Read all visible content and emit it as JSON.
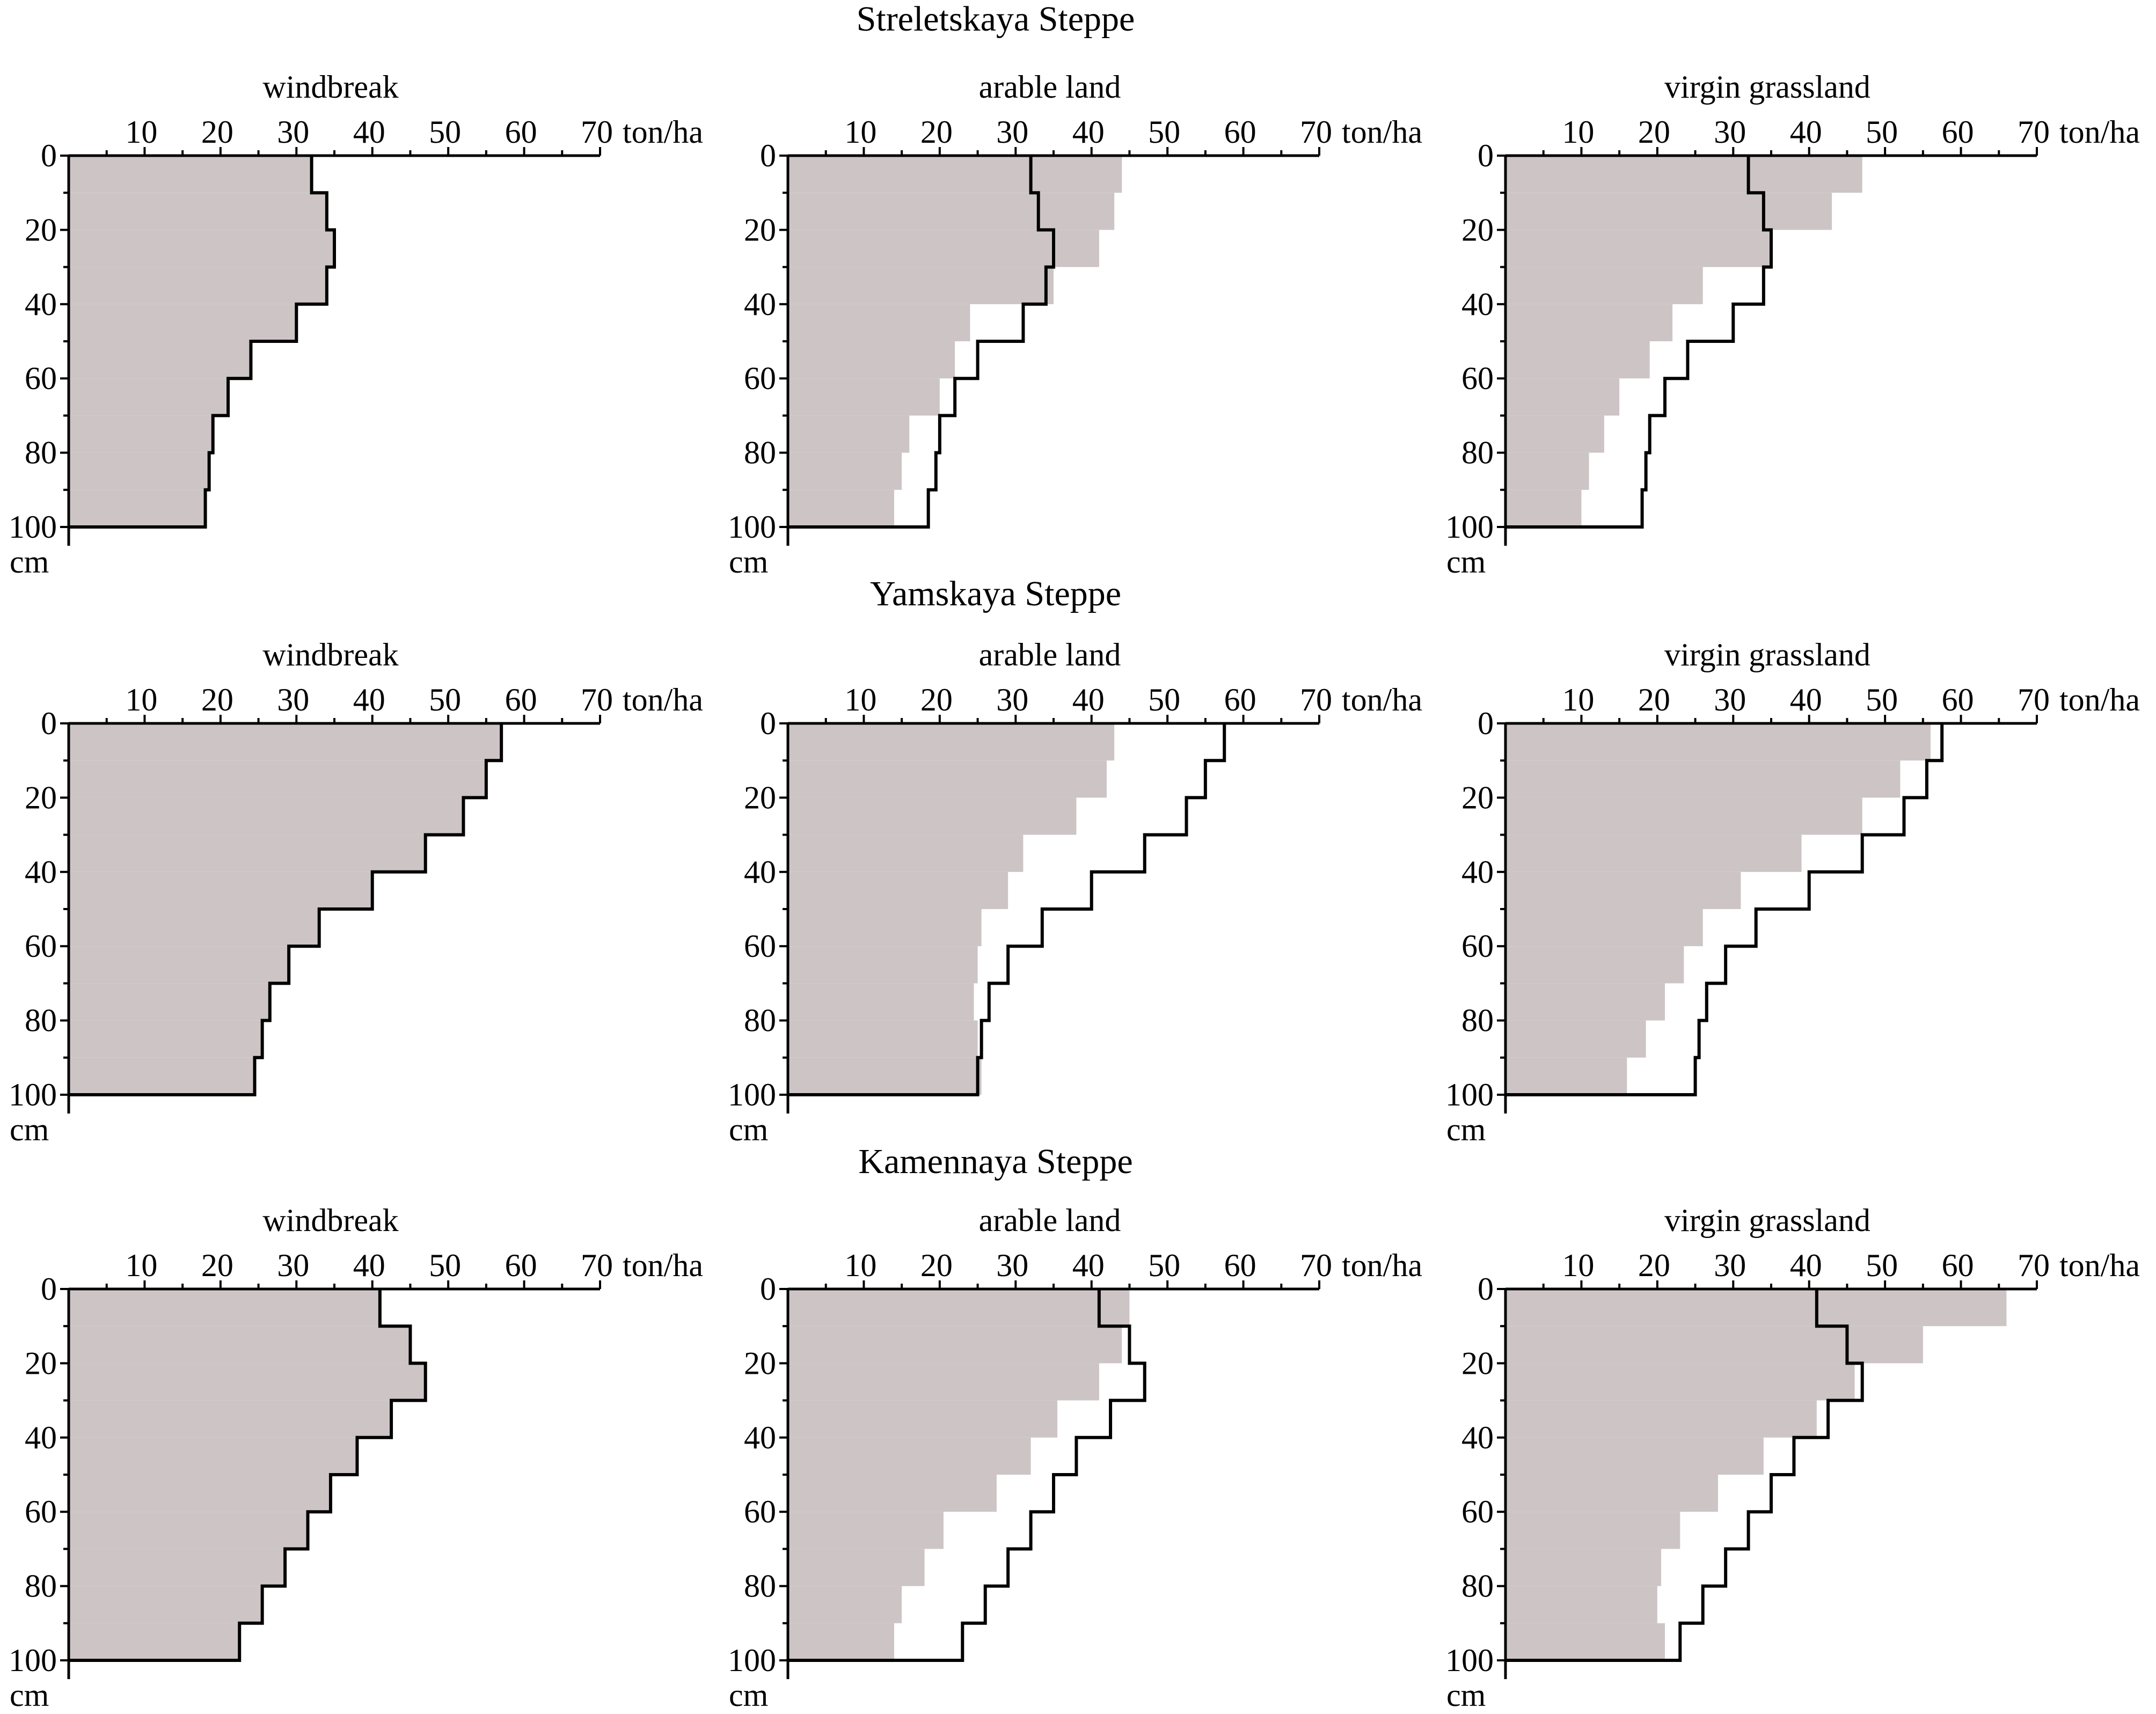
{
  "units": {
    "x": "ton/ha",
    "y": "cm"
  },
  "chart_data": [
    {
      "type": "area",
      "site": "Streletskaya Steppe",
      "title": "windbreak",
      "xlabel": "ton/ha",
      "ylabel": "cm",
      "xlim": [
        0,
        70
      ],
      "ylim": [
        0,
        100
      ],
      "x_ticks": [
        10,
        20,
        30,
        40,
        50,
        60,
        70
      ],
      "y_ticks": [
        0,
        20,
        40,
        60,
        80,
        100
      ],
      "depth_intervals": [
        [
          0,
          10
        ],
        [
          10,
          20
        ],
        [
          20,
          30
        ],
        [
          30,
          40
        ],
        [
          40,
          50
        ],
        [
          50,
          60
        ],
        [
          60,
          70
        ],
        [
          70,
          80
        ],
        [
          80,
          90
        ],
        [
          90,
          100
        ]
      ],
      "series": [
        {
          "name": "shaded",
          "values": [
            32,
            34,
            35,
            34,
            30,
            24,
            21,
            19,
            18.5,
            18
          ]
        },
        {
          "name": "line",
          "values": [
            32,
            34,
            35,
            34,
            30,
            24,
            21,
            19,
            18.5,
            18
          ]
        }
      ]
    },
    {
      "type": "area",
      "site": "Streletskaya Steppe",
      "title": "arable land",
      "xlabel": "ton/ha",
      "ylabel": "cm",
      "xlim": [
        0,
        70
      ],
      "ylim": [
        0,
        100
      ],
      "x_ticks": [
        10,
        20,
        30,
        40,
        50,
        60,
        70
      ],
      "y_ticks": [
        0,
        20,
        40,
        60,
        80,
        100
      ],
      "depth_intervals": [
        [
          0,
          10
        ],
        [
          10,
          20
        ],
        [
          20,
          30
        ],
        [
          30,
          40
        ],
        [
          40,
          50
        ],
        [
          50,
          60
        ],
        [
          60,
          70
        ],
        [
          70,
          80
        ],
        [
          80,
          90
        ],
        [
          90,
          100
        ]
      ],
      "series": [
        {
          "name": "shaded",
          "values": [
            44,
            43,
            41,
            35,
            24,
            22,
            20,
            16,
            15,
            14
          ]
        },
        {
          "name": "line",
          "values": [
            32,
            33,
            35,
            34,
            31,
            25,
            22,
            20,
            19.5,
            18.5
          ]
        }
      ]
    },
    {
      "type": "area",
      "site": "Streletskaya Steppe",
      "title": "virgin grassland",
      "xlabel": "ton/ha",
      "ylabel": "cm",
      "xlim": [
        0,
        70
      ],
      "ylim": [
        0,
        100
      ],
      "x_ticks": [
        10,
        20,
        30,
        40,
        50,
        60,
        70
      ],
      "y_ticks": [
        0,
        20,
        40,
        60,
        80,
        100
      ],
      "depth_intervals": [
        [
          0,
          10
        ],
        [
          10,
          20
        ],
        [
          20,
          30
        ],
        [
          30,
          40
        ],
        [
          40,
          50
        ],
        [
          50,
          60
        ],
        [
          60,
          70
        ],
        [
          70,
          80
        ],
        [
          80,
          90
        ],
        [
          90,
          100
        ]
      ],
      "series": [
        {
          "name": "shaded",
          "values": [
            47,
            43,
            35,
            26,
            22,
            19,
            15,
            13,
            11,
            10
          ]
        },
        {
          "name": "line",
          "values": [
            32,
            34,
            35,
            34,
            30,
            24,
            21,
            19,
            18.5,
            18
          ]
        }
      ]
    },
    {
      "type": "area",
      "site": "Yamskaya Steppe",
      "title": "windbreak",
      "xlabel": "ton/ha",
      "ylabel": "cm",
      "xlim": [
        0,
        70
      ],
      "ylim": [
        0,
        100
      ],
      "x_ticks": [
        10,
        20,
        30,
        40,
        50,
        60,
        70
      ],
      "y_ticks": [
        0,
        20,
        40,
        60,
        80,
        100
      ],
      "depth_intervals": [
        [
          0,
          10
        ],
        [
          10,
          20
        ],
        [
          20,
          30
        ],
        [
          30,
          40
        ],
        [
          40,
          50
        ],
        [
          50,
          60
        ],
        [
          60,
          70
        ],
        [
          70,
          80
        ],
        [
          80,
          90
        ],
        [
          90,
          100
        ]
      ],
      "series": [
        {
          "name": "shaded",
          "values": [
            57,
            55,
            52,
            47,
            40,
            33,
            29,
            26.5,
            25.5,
            24.5
          ]
        },
        {
          "name": "line",
          "values": [
            57,
            55,
            52,
            47,
            40,
            33,
            29,
            26.5,
            25.5,
            24.5
          ]
        }
      ]
    },
    {
      "type": "area",
      "site": "Yamskaya Steppe",
      "title": "arable land",
      "xlabel": "ton/ha",
      "ylabel": "cm",
      "xlim": [
        0,
        70
      ],
      "ylim": [
        0,
        100
      ],
      "x_ticks": [
        10,
        20,
        30,
        40,
        50,
        60,
        70
      ],
      "y_ticks": [
        0,
        20,
        40,
        60,
        80,
        100
      ],
      "depth_intervals": [
        [
          0,
          10
        ],
        [
          10,
          20
        ],
        [
          20,
          30
        ],
        [
          30,
          40
        ],
        [
          40,
          50
        ],
        [
          50,
          60
        ],
        [
          60,
          70
        ],
        [
          70,
          80
        ],
        [
          80,
          90
        ],
        [
          90,
          100
        ]
      ],
      "series": [
        {
          "name": "shaded",
          "values": [
            43,
            42,
            38,
            31,
            29,
            25.5,
            25,
            24.5,
            25,
            25.5
          ]
        },
        {
          "name": "line",
          "values": [
            57.5,
            55,
            52.5,
            47,
            40,
            33.5,
            29,
            26.5,
            25.5,
            25
          ]
        }
      ]
    },
    {
      "type": "area",
      "site": "Yamskaya Steppe",
      "title": "virgin grassland",
      "xlabel": "ton/ha",
      "ylabel": "cm",
      "xlim": [
        0,
        70
      ],
      "ylim": [
        0,
        100
      ],
      "x_ticks": [
        10,
        20,
        30,
        40,
        50,
        60,
        70
      ],
      "y_ticks": [
        0,
        20,
        40,
        60,
        80,
        100
      ],
      "depth_intervals": [
        [
          0,
          10
        ],
        [
          10,
          20
        ],
        [
          20,
          30
        ],
        [
          30,
          40
        ],
        [
          40,
          50
        ],
        [
          50,
          60
        ],
        [
          60,
          70
        ],
        [
          70,
          80
        ],
        [
          80,
          90
        ],
        [
          90,
          100
        ]
      ],
      "series": [
        {
          "name": "shaded",
          "values": [
            56,
            52,
            47,
            39,
            31,
            26,
            23.5,
            21,
            18.5,
            16
          ]
        },
        {
          "name": "line",
          "values": [
            57.5,
            55.5,
            52.5,
            47,
            40,
            33,
            29,
            26.5,
            25.5,
            25
          ]
        }
      ]
    },
    {
      "type": "area",
      "site": "Kamennaya Steppe",
      "title": "windbreak",
      "xlabel": "ton/ha",
      "ylabel": "cm",
      "xlim": [
        0,
        70
      ],
      "ylim": [
        0,
        100
      ],
      "x_ticks": [
        10,
        20,
        30,
        40,
        50,
        60,
        70
      ],
      "y_ticks": [
        0,
        20,
        40,
        60,
        80,
        100
      ],
      "depth_intervals": [
        [
          0,
          10
        ],
        [
          10,
          20
        ],
        [
          20,
          30
        ],
        [
          30,
          40
        ],
        [
          40,
          50
        ],
        [
          50,
          60
        ],
        [
          60,
          70
        ],
        [
          70,
          80
        ],
        [
          80,
          90
        ],
        [
          90,
          100
        ]
      ],
      "series": [
        {
          "name": "shaded",
          "values": [
            41,
            45,
            47,
            42.5,
            38,
            34.5,
            31.5,
            28.5,
            25.5,
            22.5
          ]
        },
        {
          "name": "line",
          "values": [
            41,
            45,
            47,
            42.5,
            38,
            34.5,
            31.5,
            28.5,
            25.5,
            22.5
          ]
        }
      ]
    },
    {
      "type": "area",
      "site": "Kamennaya Steppe",
      "title": "arable land",
      "xlabel": "ton/ha",
      "ylabel": "cm",
      "xlim": [
        0,
        70
      ],
      "ylim": [
        0,
        100
      ],
      "x_ticks": [
        10,
        20,
        30,
        40,
        50,
        60,
        70
      ],
      "y_ticks": [
        0,
        20,
        40,
        60,
        80,
        100
      ],
      "depth_intervals": [
        [
          0,
          10
        ],
        [
          10,
          20
        ],
        [
          20,
          30
        ],
        [
          30,
          40
        ],
        [
          40,
          50
        ],
        [
          50,
          60
        ],
        [
          60,
          70
        ],
        [
          70,
          80
        ],
        [
          80,
          90
        ],
        [
          90,
          100
        ]
      ],
      "series": [
        {
          "name": "shaded",
          "values": [
            45,
            44,
            41,
            35.5,
            32,
            27.5,
            20.5,
            18,
            15,
            14
          ]
        },
        {
          "name": "line",
          "values": [
            41,
            45,
            47,
            42.5,
            38,
            35,
            32,
            29,
            26,
            23
          ]
        }
      ]
    },
    {
      "type": "area",
      "site": "Kamennaya Steppe",
      "title": "virgin grassland",
      "xlabel": "ton/ha",
      "ylabel": "cm",
      "xlim": [
        0,
        70
      ],
      "ylim": [
        0,
        100
      ],
      "x_ticks": [
        10,
        20,
        30,
        40,
        50,
        60,
        70
      ],
      "y_ticks": [
        0,
        20,
        40,
        60,
        80,
        100
      ],
      "depth_intervals": [
        [
          0,
          10
        ],
        [
          10,
          20
        ],
        [
          20,
          30
        ],
        [
          30,
          40
        ],
        [
          40,
          50
        ],
        [
          50,
          60
        ],
        [
          60,
          70
        ],
        [
          70,
          80
        ],
        [
          80,
          90
        ],
        [
          90,
          100
        ]
      ],
      "series": [
        {
          "name": "shaded",
          "values": [
            66,
            55,
            46,
            41,
            34,
            28,
            23,
            20.5,
            20,
            21
          ]
        },
        {
          "name": "line",
          "values": [
            41,
            45,
            47,
            42.5,
            38,
            35,
            32,
            29,
            26,
            23
          ]
        }
      ]
    }
  ]
}
